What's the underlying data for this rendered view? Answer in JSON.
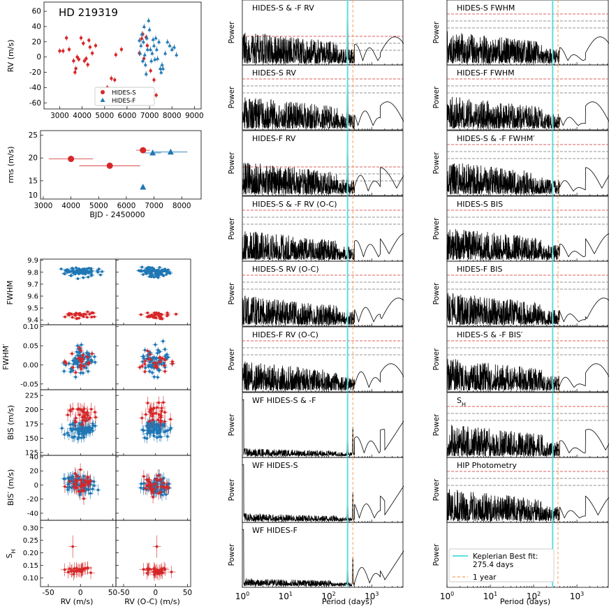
{
  "colors": {
    "red": "#d62728",
    "blue": "#1f77b4",
    "cyan": "#5fdde0",
    "orange": "#f5a25d",
    "gray": "#707070"
  },
  "chart_data": [
    {
      "id": "rv-time",
      "type": "scatter",
      "title": "HD 219319",
      "xlabel": "",
      "ylabel": "RV (m/s)",
      "xlim": [
        2300,
        9300
      ],
      "ylim": [
        -68,
        72
      ],
      "xticks": [
        3000,
        4000,
        5000,
        6000,
        7000,
        8000,
        9000
      ],
      "yticks": [
        -60,
        -40,
        -20,
        0,
        20,
        40,
        60
      ],
      "legend": {
        "position": "lower-center",
        "entries": [
          "HIDES-S",
          "HIDES-F"
        ]
      },
      "series": [
        {
          "name": "HIDES-S",
          "marker": "circle",
          "color": "red",
          "points": [
            [
              3000,
              8
            ],
            [
              3150,
              8
            ],
            [
              3300,
              25
            ],
            [
              3420,
              10
            ],
            [
              3620,
              -5
            ],
            [
              3680,
              -20
            ],
            [
              3720,
              -15
            ],
            [
              3780,
              0
            ],
            [
              3850,
              -3
            ],
            [
              3950,
              25
            ],
            [
              4050,
              18
            ],
            [
              4100,
              -5
            ],
            [
              4180,
              -2
            ],
            [
              4250,
              -10
            ],
            [
              4300,
              22
            ],
            [
              4350,
              13
            ],
            [
              4450,
              5
            ],
            [
              4600,
              15
            ],
            [
              5050,
              -50
            ],
            [
              5120,
              -40
            ],
            [
              5300,
              -28
            ],
            [
              5450,
              -30
            ],
            [
              5500,
              3
            ],
            [
              5750,
              10
            ],
            [
              6550,
              5
            ],
            [
              6650,
              24
            ],
            [
              6700,
              30
            ],
            [
              6750,
              -2
            ],
            [
              6850,
              26
            ],
            [
              6900,
              15
            ],
            [
              7050,
              -18
            ],
            [
              7200,
              -30
            ],
            [
              7300,
              -50
            ]
          ]
        },
        {
          "name": "HIDES-F",
          "marker": "triangle",
          "color": "blue",
          "points": [
            [
              6550,
              22
            ],
            [
              6580,
              5
            ],
            [
              6620,
              15
            ],
            [
              6660,
              30
            ],
            [
              6700,
              -5
            ],
            [
              6730,
              20
            ],
            [
              6760,
              40
            ],
            [
              6790,
              3
            ],
            [
              6820,
              -10
            ],
            [
              6850,
              -22
            ],
            [
              6880,
              25
            ],
            [
              6910,
              10
            ],
            [
              6960,
              48
            ],
            [
              7000,
              36
            ],
            [
              7040,
              10
            ],
            [
              7080,
              -5
            ],
            [
              7120,
              5
            ],
            [
              7160,
              23
            ],
            [
              7200,
              15
            ],
            [
              7240,
              -3
            ],
            [
              7280,
              25
            ],
            [
              7320,
              10
            ],
            [
              7360,
              -2
            ],
            [
              7420,
              20
            ],
            [
              7480,
              -15
            ],
            [
              7520,
              -20
            ],
            [
              7560,
              -10
            ],
            [
              7600,
              -15
            ],
            [
              7700,
              5
            ],
            [
              7800,
              20
            ],
            [
              7900,
              15
            ],
            [
              8000,
              10
            ],
            [
              8100,
              13
            ],
            [
              8200,
              3
            ]
          ]
        }
      ]
    },
    {
      "id": "rms-time",
      "type": "scatter",
      "xlabel": "BJD - 2450000",
      "ylabel": "rms (m/s)",
      "xlim": [
        2900,
        8700
      ],
      "ylim": [
        11,
        26
      ],
      "xticks": [
        3000,
        4000,
        5000,
        6000,
        7000,
        8000
      ],
      "yticks": [
        10,
        15,
        20,
        25
      ],
      "series": [
        {
          "name": "HIDES-S",
          "marker": "circle",
          "color": "red",
          "points": [
            [
              4000,
              19.8,
              800
            ],
            [
              5400,
              18.3,
              1100
            ],
            [
              6600,
              21.7,
              250
            ]
          ]
        },
        {
          "name": "HIDES-F",
          "marker": "triangle",
          "color": "blue",
          "points": [
            [
              6600,
              13.6,
              0
            ],
            [
              6950,
              21.1,
              300
            ],
            [
              7600,
              21.3,
              600
            ]
          ]
        }
      ]
    },
    {
      "id": "correlation-grid",
      "type": "scatter",
      "col_xlabels": [
        "RV (m/s)",
        "RV (O-C) (m/s)"
      ],
      "xlim": [
        -62,
        55
      ],
      "xticks": [
        -50,
        0,
        50
      ],
      "rows": [
        {
          "ylabel": "FWHM",
          "ylim": [
            9.36,
            9.91
          ],
          "yticks": [
            9.4,
            9.5,
            9.6,
            9.7,
            9.8,
            9.9
          ]
        },
        {
          "ylabel": "FWHM′",
          "ylim": [
            -0.065,
            0.105
          ],
          "yticks": [
            -0.05,
            0.0,
            0.05,
            0.1
          ]
        },
        {
          "ylabel": "BIS (m/s)",
          "ylim": [
            120,
            235
          ],
          "yticks": [
            125,
            150,
            175,
            200,
            225
          ]
        },
        {
          "ylabel": "BIS′ (m/s)",
          "ylim": [
            -50,
            42
          ],
          "yticks": [
            -40,
            -20,
            0,
            20,
            40
          ]
        },
        {
          "ylabel": "S_H",
          "ylim": [
            0.065,
            0.33
          ],
          "yticks": [
            0.1,
            0.15,
            0.2,
            0.25,
            0.3
          ]
        }
      ]
    },
    {
      "id": "periodograms-rv",
      "type": "line",
      "xlabel": "Period (days)",
      "ylabel": "Power",
      "xlim": [
        1,
        5500
      ],
      "panels": [
        "HIDES-S & -F RV",
        "HIDES-S RV",
        "HIDES-F RV",
        "HIDES-S & -F RV (O-C)",
        "HIDES-S RV (O-C)",
        "HIDES-F RV (O-C)",
        "WF HIDES-S & -F",
        "WF HIDES-S",
        "WF HIDES-F"
      ]
    },
    {
      "id": "periodograms-activity",
      "type": "line",
      "xlabel": "Period (days)",
      "ylabel": "Power",
      "xlim": [
        1,
        5500
      ],
      "panels": [
        "HIDES-S FWHM",
        "HIDES-F FWHM",
        "HIDES-S & -F FWHM′",
        "HIDES-S BIS",
        "HIDES-F BIS",
        "HIDES-S & -F BIS′",
        "S_H",
        "HIP Photometry",
        ""
      ],
      "markers": [
        {
          "period": 275.4,
          "label": "Keplerian Best fit:",
          "label2": "275.4 days",
          "style": "cyan solid"
        },
        {
          "period": 365.25,
          "label": "1 year",
          "style": "orange dashed"
        }
      ]
    }
  ]
}
